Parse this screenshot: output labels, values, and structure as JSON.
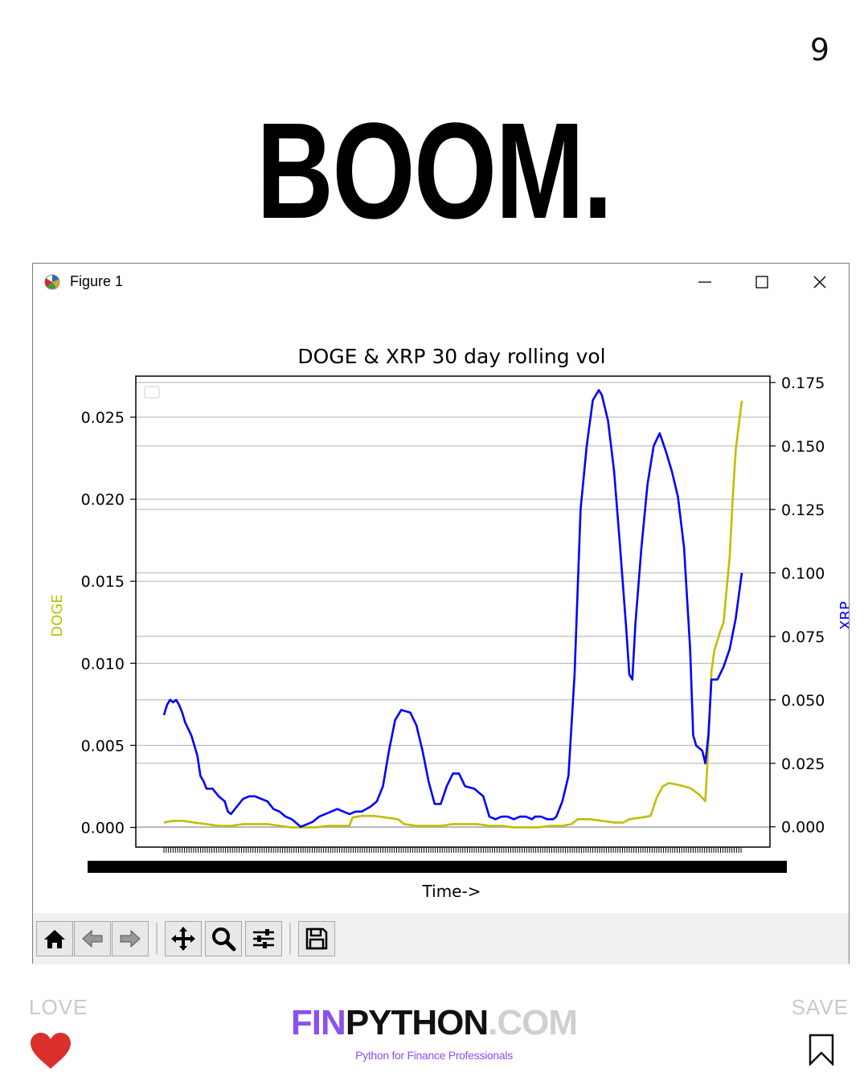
{
  "page_number": "9",
  "headline": "BOOM.",
  "window": {
    "title": "Figure 1",
    "minimize_icon": "minimize-icon",
    "maximize_icon": "maximize-icon",
    "close_icon": "close-icon"
  },
  "toolbar": {
    "buttons": [
      "home-icon",
      "back-arrow-icon",
      "forward-arrow-icon",
      "pan-icon",
      "zoom-icon",
      "subplots-icon",
      "save-icon"
    ]
  },
  "footer": {
    "love_label": "LOVE",
    "save_label": "SAVE",
    "brand_fin": "FIN",
    "brand_python": "PYTHON",
    "brand_com": ".COM",
    "tagline": "Python for Finance Professionals",
    "heart_color": "#d9302c"
  },
  "chart_data": {
    "type": "line",
    "title": "DOGE & XRP 30 day rolling vol",
    "xlabel": "Time->",
    "ylabel_left": "DOGE",
    "ylabel_right": "XRP",
    "ylim_left": [
      -0.0012,
      0.0275
    ],
    "ylim_right": [
      -0.008,
      0.1775
    ],
    "yticks_left": [
      "0.000",
      "0.005",
      "0.010",
      "0.015",
      "0.020",
      "0.025"
    ],
    "yticks_right": [
      "0.000",
      "0.025",
      "0.050",
      "0.075",
      "0.100",
      "0.125",
      "0.150",
      "0.175"
    ],
    "grid": true,
    "legend": "top-left (empty)",
    "series": [
      {
        "name": "DOGE",
        "axis": "left",
        "color": "#bfbf00",
        "values": [
          [
            0,
            0.0003
          ],
          [
            6,
            0.0004
          ],
          [
            12,
            0.0004
          ],
          [
            20,
            0.0003
          ],
          [
            28,
            0.0002
          ],
          [
            36,
            0.0001
          ],
          [
            44,
            0.0001
          ],
          [
            52,
            0.0002
          ],
          [
            60,
            0.0002
          ],
          [
            68,
            0.0002
          ],
          [
            76,
            0.0001
          ],
          [
            84,
            0.0
          ],
          [
            92,
            0.0
          ],
          [
            100,
            0.0
          ],
          [
            108,
            0.0001
          ],
          [
            116,
            0.0001
          ],
          [
            122,
            0.0001
          ],
          [
            124,
            0.0006
          ],
          [
            130,
            0.0007
          ],
          [
            138,
            0.0007
          ],
          [
            146,
            0.0006
          ],
          [
            154,
            0.0005
          ],
          [
            158,
            0.0002
          ],
          [
            166,
            0.0001
          ],
          [
            174,
            0.0001
          ],
          [
            182,
            0.0001
          ],
          [
            190,
            0.0002
          ],
          [
            198,
            0.0002
          ],
          [
            206,
            0.0002
          ],
          [
            214,
            0.0001
          ],
          [
            222,
            0.0001
          ],
          [
            230,
            0.0
          ],
          [
            238,
            0.0
          ],
          [
            246,
            0.0
          ],
          [
            254,
            0.0001
          ],
          [
            262,
            0.0001
          ],
          [
            268,
            0.0002
          ],
          [
            272,
            0.0005
          ],
          [
            280,
            0.0005
          ],
          [
            288,
            0.0004
          ],
          [
            296,
            0.0003
          ],
          [
            302,
            0.0003
          ],
          [
            306,
            0.0005
          ],
          [
            314,
            0.0006
          ],
          [
            320,
            0.0007
          ],
          [
            324,
            0.0018
          ],
          [
            328,
            0.0025
          ],
          [
            332,
            0.0027
          ],
          [
            338,
            0.0026
          ],
          [
            346,
            0.0024
          ],
          [
            352,
            0.002
          ],
          [
            356,
            0.0016
          ],
          [
            358,
            0.005
          ],
          [
            360,
            0.0095
          ],
          [
            362,
            0.0108
          ],
          [
            366,
            0.012
          ],
          [
            368,
            0.0125
          ],
          [
            370,
            0.0145
          ],
          [
            372,
            0.0165
          ],
          [
            374,
            0.02
          ],
          [
            376,
            0.023
          ],
          [
            378,
            0.0245
          ],
          [
            380,
            0.026
          ]
        ]
      },
      {
        "name": "XRP",
        "axis": "right",
        "color": "#0000ff",
        "values": [
          [
            0,
            0.044
          ],
          [
            2,
            0.048
          ],
          [
            4,
            0.05
          ],
          [
            6,
            0.049
          ],
          [
            8,
            0.05
          ],
          [
            10,
            0.048
          ],
          [
            12,
            0.045
          ],
          [
            14,
            0.041
          ],
          [
            18,
            0.036
          ],
          [
            22,
            0.028
          ],
          [
            24,
            0.02
          ],
          [
            26,
            0.018
          ],
          [
            28,
            0.015
          ],
          [
            32,
            0.015
          ],
          [
            36,
            0.012
          ],
          [
            40,
            0.01
          ],
          [
            42,
            0.006
          ],
          [
            44,
            0.005
          ],
          [
            48,
            0.008
          ],
          [
            52,
            0.011
          ],
          [
            56,
            0.012
          ],
          [
            60,
            0.012
          ],
          [
            64,
            0.011
          ],
          [
            68,
            0.01
          ],
          [
            72,
            0.007
          ],
          [
            76,
            0.006
          ],
          [
            80,
            0.004
          ],
          [
            84,
            0.003
          ],
          [
            86,
            0.002
          ],
          [
            88,
            0.001
          ],
          [
            90,
            0.0
          ],
          [
            94,
            0.001
          ],
          [
            98,
            0.002
          ],
          [
            102,
            0.004
          ],
          [
            106,
            0.005
          ],
          [
            110,
            0.006
          ],
          [
            114,
            0.007
          ],
          [
            118,
            0.006
          ],
          [
            122,
            0.005
          ],
          [
            126,
            0.006
          ],
          [
            130,
            0.006
          ],
          [
            136,
            0.008
          ],
          [
            140,
            0.01
          ],
          [
            144,
            0.016
          ],
          [
            148,
            0.03
          ],
          [
            152,
            0.042
          ],
          [
            156,
            0.046
          ],
          [
            162,
            0.045
          ],
          [
            166,
            0.04
          ],
          [
            170,
            0.03
          ],
          [
            174,
            0.018
          ],
          [
            178,
            0.009
          ],
          [
            182,
            0.009
          ],
          [
            186,
            0.016
          ],
          [
            190,
            0.021
          ],
          [
            194,
            0.021
          ],
          [
            198,
            0.016
          ],
          [
            204,
            0.015
          ],
          [
            210,
            0.012
          ],
          [
            214,
            0.004
          ],
          [
            218,
            0.003
          ],
          [
            222,
            0.004
          ],
          [
            226,
            0.004
          ],
          [
            230,
            0.003
          ],
          [
            234,
            0.004
          ],
          [
            238,
            0.004
          ],
          [
            242,
            0.003
          ],
          [
            244,
            0.004
          ],
          [
            248,
            0.004
          ],
          [
            252,
            0.003
          ],
          [
            256,
            0.003
          ],
          [
            258,
            0.004
          ],
          [
            262,
            0.01
          ],
          [
            266,
            0.02
          ],
          [
            270,
            0.06
          ],
          [
            274,
            0.125
          ],
          [
            278,
            0.15
          ],
          [
            282,
            0.168
          ],
          [
            286,
            0.172
          ],
          [
            288,
            0.17
          ],
          [
            292,
            0.16
          ],
          [
            296,
            0.14
          ],
          [
            300,
            0.11
          ],
          [
            304,
            0.078
          ],
          [
            306,
            0.06
          ],
          [
            308,
            0.058
          ],
          [
            310,
            0.08
          ],
          [
            314,
            0.11
          ],
          [
            318,
            0.135
          ],
          [
            322,
            0.15
          ],
          [
            326,
            0.155
          ],
          [
            330,
            0.148
          ],
          [
            334,
            0.14
          ],
          [
            338,
            0.13
          ],
          [
            342,
            0.11
          ],
          [
            346,
            0.07
          ],
          [
            348,
            0.036
          ],
          [
            350,
            0.032
          ],
          [
            354,
            0.03
          ],
          [
            356,
            0.025
          ],
          [
            358,
            0.036
          ],
          [
            360,
            0.058
          ],
          [
            364,
            0.058
          ],
          [
            368,
            0.063
          ],
          [
            372,
            0.07
          ],
          [
            376,
            0.082
          ],
          [
            380,
            0.1
          ]
        ]
      }
    ]
  }
}
